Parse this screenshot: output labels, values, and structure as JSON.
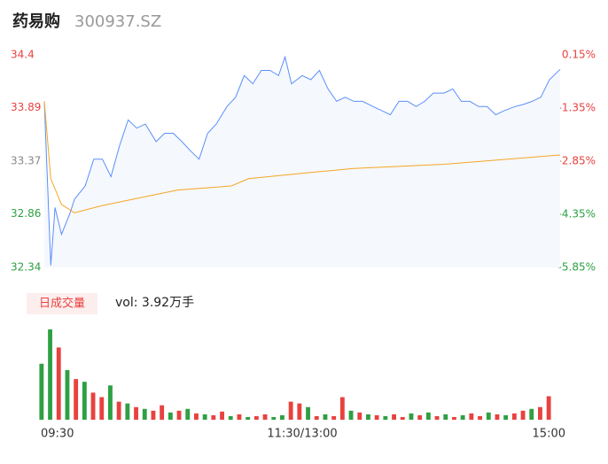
{
  "header": {
    "name": "药易购",
    "code": "300937.SZ"
  },
  "chart_data": [
    {
      "type": "line",
      "ylim": [
        32.34,
        34.4
      ],
      "yticks": [
        34.4,
        33.89,
        33.37,
        32.86,
        32.34
      ],
      "ytick_colors": [
        "#e8423f",
        "#e8423f",
        "#888888",
        "#2ea043",
        "#2ea043"
      ],
      "y2lim": [
        -5.85,
        0.15
      ],
      "y2ticks": [
        {
          "value": 0.15,
          "label": "0.15%"
        },
        {
          "value": -1.35,
          "label": "-1.35%"
        },
        {
          "value": -2.85,
          "label": "-2.85%"
        },
        {
          "value": -4.35,
          "label": "-4.35%"
        },
        {
          "value": -5.85,
          "label": "-5.85%"
        }
      ],
      "y2tick_colors": [
        "#e8423f",
        "#e8423f",
        "#e8423f",
        "#2ea043",
        "#2ea043"
      ],
      "xlim": [
        0,
        240
      ],
      "xticks": [
        {
          "value": 0,
          "label": "09:30"
        },
        {
          "value": 120,
          "label": "11:30/13:00"
        },
        {
          "value": 240,
          "label": "15:00"
        }
      ],
      "series": [
        {
          "color": "#5b8ff9",
          "area": true,
          "x": [
            0,
            3,
            5,
            8,
            12,
            14,
            19,
            23,
            27,
            31,
            35,
            39,
            43,
            47,
            52,
            56,
            60,
            64,
            68,
            72,
            76,
            80,
            85,
            89,
            93,
            97,
            101,
            105,
            109,
            112,
            115,
            120,
            124,
            128,
            132,
            136,
            140,
            144,
            148,
            153,
            157,
            161,
            165,
            169,
            173,
            177,
            181,
            186,
            190,
            194,
            198,
            202,
            206,
            210,
            214,
            219,
            223,
            227,
            231,
            235,
            240
          ],
          "values": [
            33.95,
            32.36,
            32.92,
            32.66,
            32.87,
            33.0,
            33.13,
            33.39,
            33.39,
            33.22,
            33.52,
            33.77,
            33.69,
            33.73,
            33.56,
            33.64,
            33.64,
            33.56,
            33.47,
            33.39,
            33.64,
            33.73,
            33.9,
            33.99,
            34.2,
            34.12,
            34.25,
            34.25,
            34.2,
            34.38,
            34.12,
            34.2,
            34.16,
            34.25,
            34.07,
            33.95,
            33.99,
            33.95,
            33.95,
            33.9,
            33.86,
            33.82,
            33.95,
            33.95,
            33.9,
            33.95,
            34.03,
            34.03,
            34.07,
            33.95,
            33.95,
            33.9,
            33.9,
            33.82,
            33.86,
            33.9,
            33.92,
            33.95,
            33.99,
            34.16,
            34.26
          ]
        },
        {
          "color": "#f5a623",
          "area": false,
          "x": [
            0,
            3,
            8,
            14,
            27,
            41,
            62,
            87,
            95,
            124,
            144,
            186,
            240
          ],
          "values": [
            33.95,
            33.2,
            32.95,
            32.87,
            32.94,
            33.0,
            33.09,
            33.13,
            33.2,
            33.26,
            33.3,
            33.34,
            33.43
          ]
        }
      ]
    },
    {
      "type": "bar",
      "legend_label": "日成交量",
      "annotation": "vol: 3.92万手",
      "up_color": "#e8423f",
      "down_color": "#2ea043",
      "values": [
        62,
        100,
        80,
        55,
        45,
        42,
        30,
        25,
        38,
        20,
        18,
        14,
        12,
        10,
        16,
        8,
        10,
        12,
        7,
        6,
        5,
        9,
        4,
        6,
        3,
        4,
        6,
        3,
        5,
        20,
        18,
        14,
        4,
        6,
        4,
        25,
        10,
        8,
        6,
        5,
        4,
        6,
        3,
        7,
        5,
        8,
        4,
        6,
        3,
        5,
        7,
        4,
        8,
        6,
        5,
        7,
        10,
        12,
        14,
        26
      ],
      "up": [
        false,
        false,
        true,
        false,
        true,
        false,
        true,
        true,
        false,
        true,
        false,
        true,
        false,
        true,
        true,
        false,
        true,
        false,
        true,
        false,
        true,
        true,
        false,
        true,
        false,
        true,
        true,
        false,
        false,
        true,
        true,
        false,
        true,
        false,
        true,
        true,
        false,
        true,
        false,
        true,
        false,
        true,
        true,
        false,
        true,
        false,
        true,
        false,
        true,
        false,
        true,
        true,
        false,
        true,
        false,
        true,
        true,
        false,
        true,
        true
      ]
    }
  ]
}
